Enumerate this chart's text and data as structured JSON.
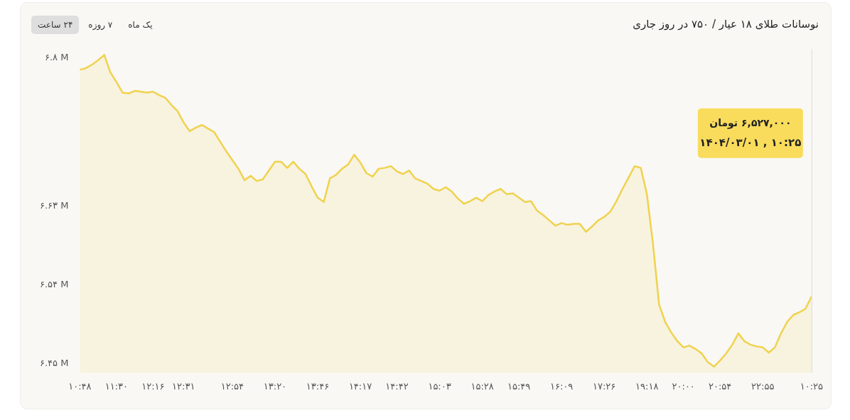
{
  "chart_data": {
    "type": "area",
    "title": "نوسانات طلای ۱۸ عیار / ۷۵۰ در روز جاری",
    "categories": [
      "۱۰:۴۸",
      null,
      null,
      null,
      null,
      null,
      "۱۱:۳۰",
      null,
      null,
      null,
      null,
      null,
      "۱۲:۱۶",
      null,
      null,
      null,
      null,
      "۱۲:۳۱",
      null,
      null,
      null,
      null,
      null,
      null,
      null,
      "۱۲:۵۴",
      null,
      null,
      null,
      null,
      null,
      null,
      "۱۳:۲۰",
      null,
      null,
      null,
      null,
      null,
      null,
      "۱۳:۴۶",
      null,
      null,
      null,
      null,
      null,
      null,
      "۱۴:۱۷",
      null,
      null,
      null,
      null,
      null,
      "۱۴:۴۲",
      null,
      null,
      null,
      null,
      null,
      null,
      "۱۵:۰۳",
      null,
      null,
      null,
      null,
      null,
      null,
      "۱۵:۲۸",
      null,
      null,
      null,
      null,
      null,
      "۱۵:۴۹",
      null,
      null,
      null,
      null,
      null,
      null,
      "۱۶:۰۹",
      null,
      null,
      null,
      null,
      null,
      null,
      "۱۷:۲۶",
      null,
      null,
      null,
      null,
      null,
      null,
      "۱۹:۱۸",
      null,
      null,
      null,
      null,
      null,
      "۲۰:۰۰",
      null,
      null,
      null,
      null,
      null,
      "۲۰:۵۴",
      null,
      null,
      null,
      null,
      null,
      null,
      "۲۲:۵۵",
      null,
      null,
      null,
      null,
      null,
      null,
      null,
      "۱۰:۲۵"
    ],
    "series": [
      {
        "color": "#f0d24e",
        "values": [
          6.786,
          6.788,
          6.792,
          6.797,
          6.803,
          6.783,
          6.772,
          6.76,
          6.759,
          6.762,
          6.761,
          6.76,
          6.761,
          6.757,
          6.754,
          6.746,
          6.739,
          6.726,
          6.716,
          6.72,
          6.723,
          6.719,
          6.715,
          6.704,
          6.693,
          6.683,
          6.673,
          6.66,
          6.665,
          6.659,
          6.661,
          6.671,
          6.681,
          6.681,
          6.674,
          6.681,
          6.673,
          6.667,
          6.653,
          6.64,
          6.635,
          6.662,
          6.666,
          6.673,
          6.678,
          6.689,
          6.68,
          6.668,
          6.664,
          6.673,
          6.674,
          6.676,
          6.67,
          6.667,
          6.671,
          6.662,
          6.659,
          6.656,
          6.65,
          6.648,
          6.652,
          6.647,
          6.639,
          6.633,
          6.636,
          6.64,
          6.636,
          6.643,
          6.647,
          6.65,
          6.644,
          6.645,
          6.64,
          6.635,
          6.636,
          6.625,
          6.62,
          6.614,
          6.608,
          6.611,
          6.609,
          6.61,
          6.61,
          6.601,
          6.607,
          6.614,
          6.618,
          6.624,
          6.636,
          6.65,
          6.663,
          6.676,
          6.674,
          6.644,
          6.587,
          6.518,
          6.498,
          6.486,
          6.476,
          6.469,
          6.471,
          6.467,
          6.462,
          6.452,
          6.447,
          6.454,
          6.462,
          6.472,
          6.485,
          6.476,
          6.472,
          6.47,
          6.469,
          6.463,
          6.469,
          6.485,
          6.498,
          6.506,
          6.509,
          6.513,
          6.527
        ]
      }
    ],
    "ylim": [
      6.44,
      6.81
    ],
    "yticks": [
      {
        "value": 6.45,
        "label": "۶.۴۵ M"
      },
      {
        "value": 6.54,
        "label": "۶.۵۴ M"
      },
      {
        "value": 6.63,
        "label": "۶.۶۳ M"
      },
      {
        "value": 6.8,
        "label": "۶.۸ M"
      }
    ],
    "annotations": [
      "۲۴ ساعت",
      "۷ روزه",
      "یک ماه",
      "۶,۵۲۷,۰۰۰ تومان\n۱۴۰۴/۰۳/۰۱ , ۱۰:۲۵"
    ]
  }
}
